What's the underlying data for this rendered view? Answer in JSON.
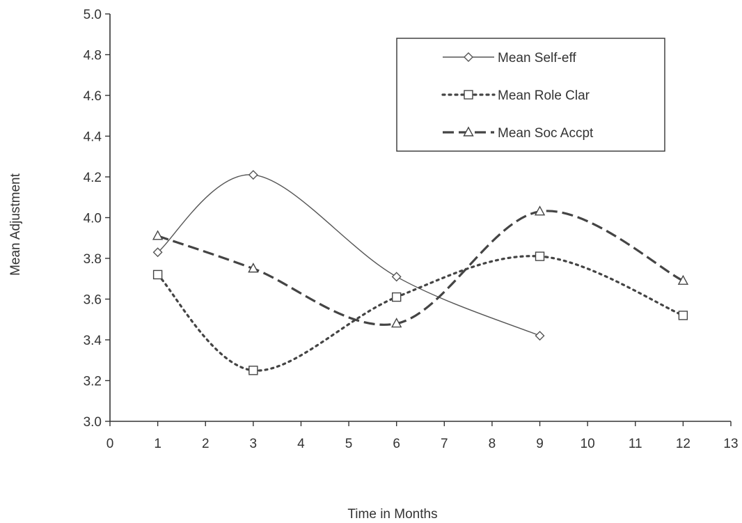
{
  "chart_data": {
    "type": "line",
    "xlabel": "Time in Months",
    "ylabel": "Mean Adjustment",
    "xlim": [
      0,
      13
    ],
    "ylim": [
      3.0,
      5.0
    ],
    "x_ticks": [
      "0",
      "1",
      "2",
      "3",
      "4",
      "5",
      "6",
      "7",
      "8",
      "9",
      "10",
      "11",
      "12",
      "13"
    ],
    "y_ticks": [
      "3.0",
      "3.2",
      "3.4",
      "3.6",
      "3.8",
      "4.0",
      "4.2",
      "4.4",
      "4.6",
      "4.8",
      "5.0"
    ],
    "grid": false,
    "legend_position": "top-right",
    "series": [
      {
        "name": "Mean Self-eff",
        "marker": "diamond",
        "line_style": "solid",
        "smooth": true,
        "color": "#555555",
        "x": [
          1,
          3,
          6,
          9
        ],
        "values": [
          3.83,
          4.21,
          3.71,
          3.42
        ]
      },
      {
        "name": "Mean Role Clar",
        "marker": "square",
        "line_style": "dotted",
        "smooth": true,
        "color": "#444444",
        "x": [
          1,
          3,
          6,
          9,
          12
        ],
        "values": [
          3.72,
          3.25,
          3.61,
          3.81,
          3.52
        ]
      },
      {
        "name": "Mean Soc Accpt",
        "marker": "triangle",
        "line_style": "dashed",
        "smooth": true,
        "color": "#444444",
        "x": [
          1,
          3,
          6,
          9,
          12
        ],
        "values": [
          3.91,
          3.75,
          3.48,
          4.03,
          3.69
        ]
      }
    ]
  }
}
